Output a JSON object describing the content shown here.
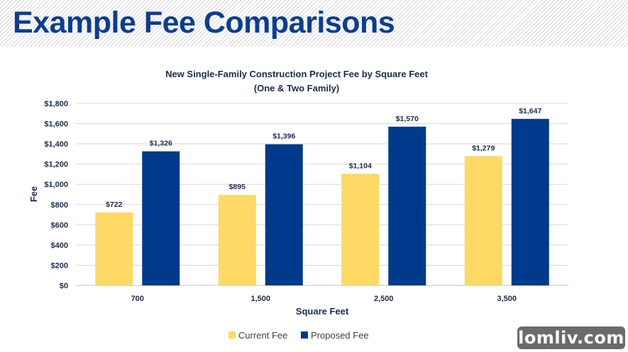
{
  "header": {
    "title": "Example Fee Comparisons"
  },
  "chart_data": {
    "type": "bar",
    "title": "New Single-Family Construction Project Fee by Square Feet",
    "subtitle": "(One & Two Family)",
    "xlabel": "Square Feet",
    "ylabel": "Fee",
    "categories": [
      "700",
      "1,500",
      "2,500",
      "3,500"
    ],
    "series": [
      {
        "name": "Current Fee",
        "values": [
          722,
          895,
          1104,
          1279
        ],
        "labels": [
          "$722",
          "$895",
          "$1,104",
          "$1,279"
        ],
        "color": "#ffd966"
      },
      {
        "name": "Proposed Fee",
        "values": [
          1326,
          1396,
          1570,
          1647
        ],
        "labels": [
          "$1,326",
          "$1,396",
          "$1,570",
          "$1,647"
        ],
        "color": "#003a8c"
      }
    ],
    "ylim": [
      0,
      1800
    ],
    "yticks": [
      0,
      200,
      400,
      600,
      800,
      1000,
      1200,
      1400,
      1600,
      1800
    ],
    "ytick_labels": [
      "$0",
      "$200",
      "$400",
      "$600",
      "$800",
      "$1,000",
      "$1,200",
      "$1,400",
      "$1,600",
      "$1,800"
    ],
    "grid": true,
    "legend_position": "bottom"
  },
  "watermark": {
    "text": "lomliv.com"
  }
}
